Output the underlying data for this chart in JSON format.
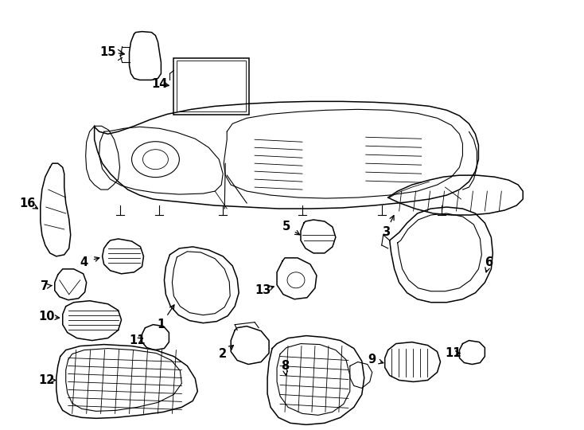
{
  "bg": "#ffffff",
  "lc": "#000000",
  "fig_w": 7.34,
  "fig_h": 5.4,
  "dpi": 100
}
